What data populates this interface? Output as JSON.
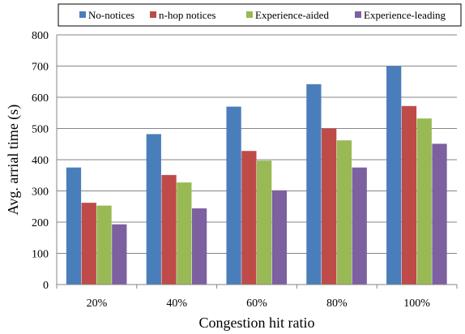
{
  "chart_data": {
    "type": "bar",
    "title": "",
    "xlabel": "Congestion hit ratio",
    "ylabel": "Avg. arrial time (s)",
    "ylim": [
      0,
      800
    ],
    "yticks": [
      0,
      100,
      200,
      300,
      400,
      500,
      600,
      700,
      800
    ],
    "categories": [
      "20%",
      "40%",
      "60%",
      "80%",
      "100%"
    ],
    "legend_position": "top",
    "grid": "horizontal",
    "series": [
      {
        "name": "No-notices",
        "color": "#4a7ebb",
        "values": [
          375,
          482,
          570,
          642,
          700
        ]
      },
      {
        "name": "n-hop notices",
        "color": "#be4b48",
        "values": [
          262,
          351,
          428,
          500,
          572
        ]
      },
      {
        "name": "Experience-aided",
        "color": "#98b954",
        "values": [
          253,
          327,
          397,
          462,
          532
        ]
      },
      {
        "name": "Experience-leading",
        "color": "#7d60a0",
        "values": [
          193,
          244,
          302,
          375,
          451
        ]
      }
    ]
  }
}
